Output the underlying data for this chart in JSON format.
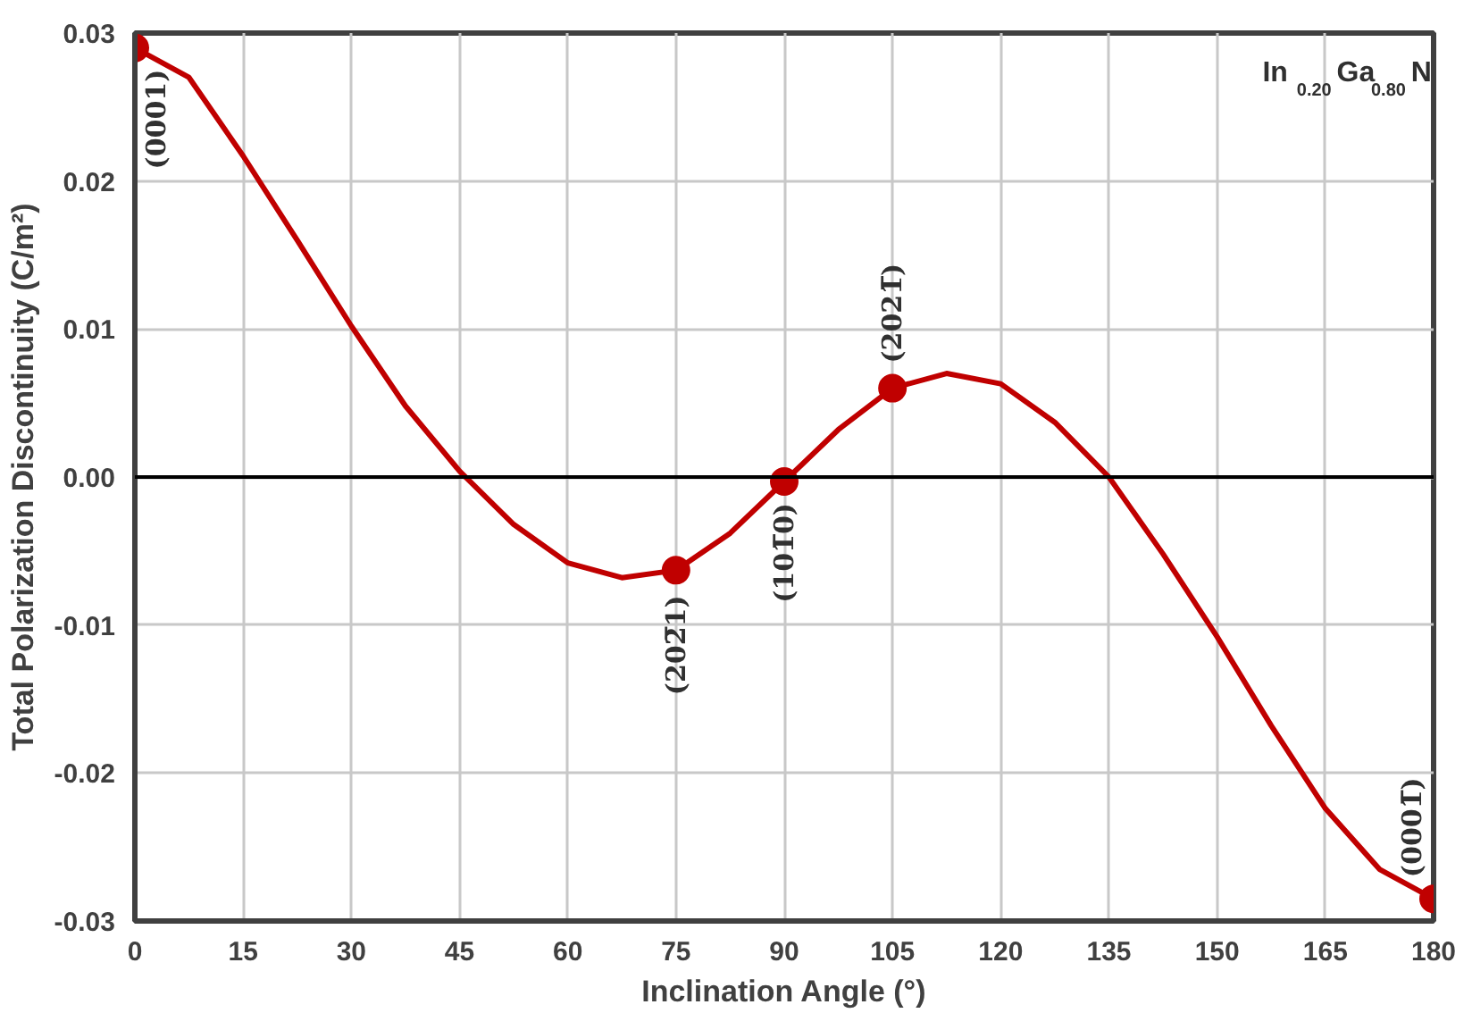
{
  "chart_data": {
    "type": "line",
    "xlabel": "Inclination Angle (°)",
    "ylabel": "Total Polarization Discontinuity (C/m²)",
    "xlim": [
      0,
      180
    ],
    "xticks": [
      0,
      15,
      30,
      45,
      60,
      75,
      90,
      105,
      120,
      135,
      150,
      165,
      180
    ],
    "ylim": [
      -0.03,
      0.03
    ],
    "yticks": [
      {
        "value": -0.03,
        "label": "-0.03"
      },
      {
        "value": -0.02,
        "label": "-0.02"
      },
      {
        "value": -0.01,
        "label": "-0.01"
      },
      {
        "value": 0,
        "label": "0.00"
      },
      {
        "value": 0.01,
        "label": "0.01"
      },
      {
        "value": 0.02,
        "label": "0.02"
      },
      {
        "value": 0.03,
        "label": "0.03"
      }
    ],
    "grid": true,
    "ref_lines": [
      {
        "axis": "y",
        "value": 0,
        "color": "#000000"
      }
    ],
    "series": [
      {
        "color": "#c00000",
        "marker": "none",
        "x": [
          0,
          7.5,
          15,
          22.5,
          30,
          37.5,
          45,
          52.5,
          60,
          67.5,
          75,
          82.5,
          90,
          97.5,
          105,
          112.5,
          120,
          127.5,
          135,
          142.5,
          150,
          157.5,
          165,
          172.5,
          180
        ],
        "values": [
          0.029,
          0.027,
          0.0217,
          0.016,
          0.0102,
          0.0048,
          0.0004,
          -0.0032,
          -0.0058,
          -0.0068,
          -0.0063,
          -0.0038,
          -0.0003,
          0.0032,
          0.006,
          0.007,
          0.0063,
          0.0037,
          0.0,
          -0.0052,
          -0.0108,
          -0.0168,
          -0.0224,
          -0.0265,
          -0.0285
        ]
      },
      {
        "type": "scatter",
        "color": "#c00000",
        "marker": "circle",
        "x": [
          0,
          75,
          90,
          105,
          180
        ],
        "values": [
          0.029,
          -0.0063,
          -0.0003,
          0.006,
          -0.0285
        ]
      }
    ],
    "annotations": [
      {
        "text": "(0001)",
        "x": 0,
        "y": 0.029
      },
      {
        "text": "(202̅1)",
        "x": 75,
        "y": -0.0063
      },
      {
        "text": "(101̅0)",
        "x": 90,
        "y": -0.0003
      },
      {
        "text": "(2021̅)",
        "x": 105,
        "y": 0.006
      },
      {
        "text": "(0001̅)",
        "x": 180,
        "y": -0.0285
      },
      "In$_{0.20}$Ga$_{0.80}$N"
    ]
  }
}
